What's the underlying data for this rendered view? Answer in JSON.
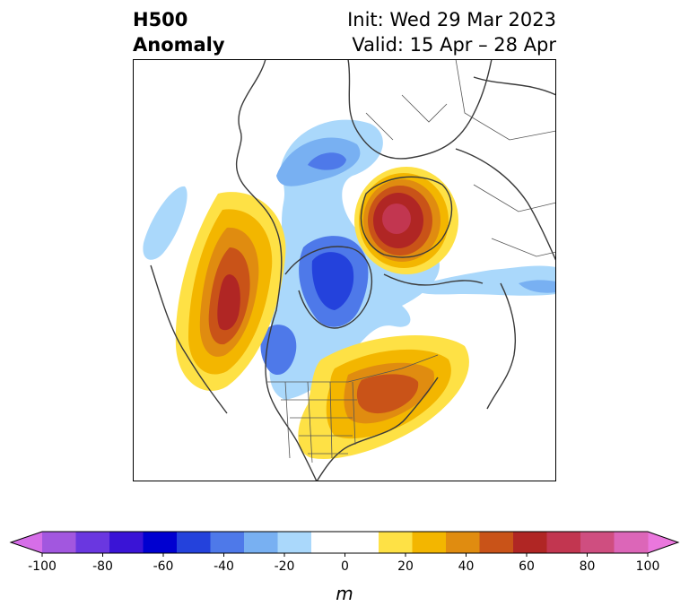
{
  "header": {
    "left_line1": "H500",
    "left_line2": "Anomaly",
    "right_line1": "Init: Wed 29 Mar 2023",
    "right_line2": "Valid: 15 Apr – 28 Apr"
  },
  "map": {
    "projection": "polar-stereographic",
    "anomalies": [
      {
        "region": "Eurasia / Barents-Kara",
        "value": 70
      },
      {
        "region": "NE Pacific / Gulf of Alaska",
        "value": 60
      },
      {
        "region": "Eastern Canada / Great Lakes",
        "value": 50
      },
      {
        "region": "Hudson Bay",
        "value": -50
      },
      {
        "region": "Greenland",
        "value": -20
      }
    ]
  },
  "colorbar": {
    "unit": "m",
    "ticks": [
      "-100",
      "-80",
      "-60",
      "-40",
      "-20",
      "0",
      "20",
      "40",
      "60",
      "80",
      "100"
    ],
    "under_color": "#d66ee8",
    "over_color": "#ea77dd",
    "colors": [
      "#a257df",
      "#6a37e0",
      "#3a14d6",
      "#0000d0",
      "#2442dc",
      "#4e79e9",
      "#78b0f2",
      "#aad8fb",
      "#ffffff",
      "#ffffff",
      "#fee145",
      "#f3b600",
      "#e08c10",
      "#c95318",
      "#b02624",
      "#c23650",
      "#cf4e80",
      "#dc66b8"
    ]
  }
}
